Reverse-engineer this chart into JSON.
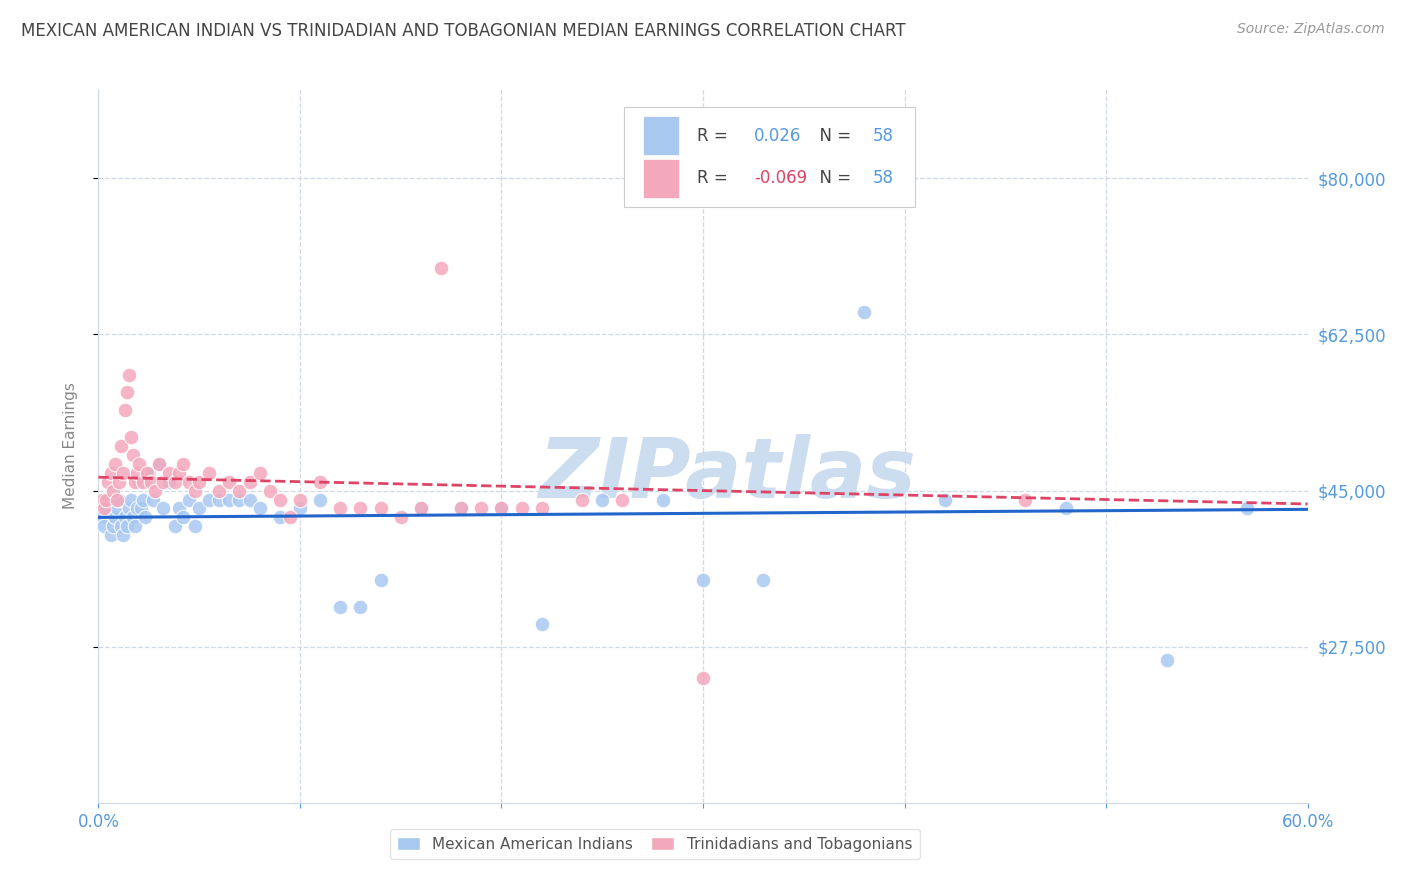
{
  "title": "MEXICAN AMERICAN INDIAN VS TRINIDADIAN AND TOBAGONIAN MEDIAN EARNINGS CORRELATION CHART",
  "source": "Source: ZipAtlas.com",
  "ylabel": "Median Earnings",
  "xlim": [
    0.0,
    0.6
  ],
  "ylim": [
    10000,
    90000
  ],
  "ytick_vals": [
    27500,
    45000,
    62500,
    80000
  ],
  "ytick_labels": [
    "$27,500",
    "$45,000",
    "$62,500",
    "$80,000"
  ],
  "xtick_vals": [
    0.0,
    0.1,
    0.2,
    0.3,
    0.4,
    0.5,
    0.6
  ],
  "xtick_labels": [
    "0.0%",
    "",
    "",
    "",
    "",
    "",
    "60.0%"
  ],
  "legend_r_blue": "0.026",
  "legend_n_blue": "58",
  "legend_r_pink": "-0.069",
  "legend_n_pink": "58",
  "blue_color": "#a8c8f0",
  "pink_color": "#f4a8bc",
  "line_blue": "#2266cc",
  "line_pink": "#dd4466",
  "watermark_color": "#ccddf0",
  "blue_scatter_x": [
    0.002,
    0.003,
    0.004,
    0.005,
    0.006,
    0.007,
    0.008,
    0.009,
    0.01,
    0.011,
    0.012,
    0.013,
    0.014,
    0.015,
    0.016,
    0.017,
    0.018,
    0.019,
    0.02,
    0.021,
    0.022,
    0.023,
    0.025,
    0.027,
    0.03,
    0.032,
    0.035,
    0.038,
    0.04,
    0.042,
    0.045,
    0.048,
    0.05,
    0.055,
    0.06,
    0.065,
    0.07,
    0.075,
    0.08,
    0.09,
    0.1,
    0.11,
    0.12,
    0.13,
    0.14,
    0.16,
    0.18,
    0.2,
    0.22,
    0.25,
    0.28,
    0.3,
    0.33,
    0.38,
    0.42,
    0.48,
    0.53,
    0.57
  ],
  "blue_scatter_y": [
    42000,
    41000,
    43000,
    44000,
    40000,
    41000,
    42000,
    43000,
    44000,
    41000,
    40000,
    42000,
    41000,
    43000,
    44000,
    42000,
    41000,
    43000,
    46000,
    43000,
    44000,
    42000,
    47000,
    44000,
    48000,
    43000,
    46000,
    41000,
    43000,
    42000,
    44000,
    41000,
    43000,
    44000,
    44000,
    44000,
    44000,
    44000,
    43000,
    42000,
    43000,
    44000,
    32000,
    32000,
    35000,
    43000,
    43000,
    43000,
    30000,
    44000,
    44000,
    35000,
    35000,
    65000,
    44000,
    43000,
    26000,
    43000
  ],
  "pink_scatter_x": [
    0.002,
    0.003,
    0.004,
    0.005,
    0.006,
    0.007,
    0.008,
    0.009,
    0.01,
    0.011,
    0.012,
    0.013,
    0.014,
    0.015,
    0.016,
    0.017,
    0.018,
    0.019,
    0.02,
    0.022,
    0.024,
    0.026,
    0.028,
    0.03,
    0.032,
    0.035,
    0.038,
    0.04,
    0.042,
    0.045,
    0.048,
    0.05,
    0.055,
    0.06,
    0.065,
    0.07,
    0.075,
    0.08,
    0.085,
    0.09,
    0.095,
    0.1,
    0.11,
    0.12,
    0.13,
    0.14,
    0.15,
    0.16,
    0.17,
    0.18,
    0.19,
    0.2,
    0.21,
    0.22,
    0.24,
    0.26,
    0.3,
    0.46
  ],
  "pink_scatter_y": [
    44000,
    43000,
    44000,
    46000,
    47000,
    45000,
    48000,
    44000,
    46000,
    50000,
    47000,
    54000,
    56000,
    58000,
    51000,
    49000,
    46000,
    47000,
    48000,
    46000,
    47000,
    46000,
    45000,
    48000,
    46000,
    47000,
    46000,
    47000,
    48000,
    46000,
    45000,
    46000,
    47000,
    45000,
    46000,
    45000,
    46000,
    47000,
    45000,
    44000,
    42000,
    44000,
    46000,
    43000,
    43000,
    43000,
    42000,
    43000,
    70000,
    43000,
    43000,
    43000,
    43000,
    43000,
    44000,
    44000,
    24000,
    44000
  ],
  "background_color": "#ffffff",
  "grid_color": "#d0d8e8",
  "title_color": "#444444",
  "axis_label_color": "#888888",
  "right_tick_color": "#5599dd"
}
